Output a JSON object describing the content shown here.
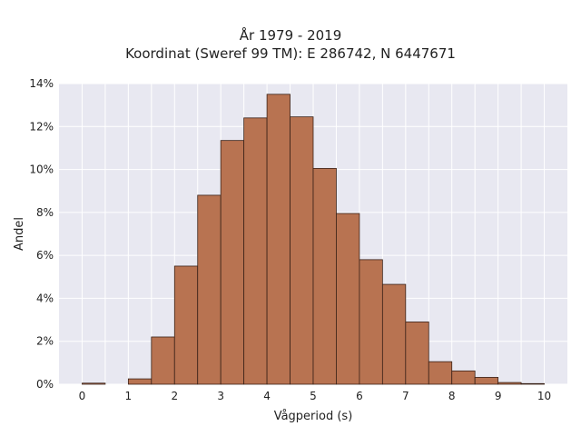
{
  "chart_data": {
    "type": "bar",
    "title_lines": [
      "År 1979 - 2019",
      "Koordinat (Sweref 99 TM): E 286742, N 6447671"
    ],
    "xlabel": "Vågperiod (s)",
    "ylabel": "Andel",
    "bin_width": 0.5,
    "bin_starts": [
      0,
      1,
      1.5,
      2,
      2.5,
      3,
      3.5,
      4,
      4.5,
      5,
      5.5,
      6,
      6.5,
      7,
      7.5,
      8,
      8.5,
      9,
      9.5
    ],
    "values": [
      0.05,
      0.25,
      2.2,
      5.5,
      8.8,
      11.35,
      12.4,
      13.5,
      12.45,
      10.05,
      7.95,
      5.8,
      4.65,
      2.9,
      1.05,
      0.62,
      0.32,
      0.08,
      0.03
    ],
    "xlim": [
      -0.5,
      10.5
    ],
    "ylim": [
      0,
      14
    ],
    "xticks": [
      0,
      1,
      2,
      3,
      4,
      5,
      6,
      7,
      8,
      9,
      10
    ],
    "yticks": [
      0,
      2,
      4,
      6,
      8,
      10,
      12,
      14
    ],
    "ytick_suffix": "%",
    "grid": true,
    "bar_color": "#b87351",
    "bar_edge_color": "#3a2218",
    "background_color": "#e8e8f1",
    "grid_color": "#ffffff"
  }
}
